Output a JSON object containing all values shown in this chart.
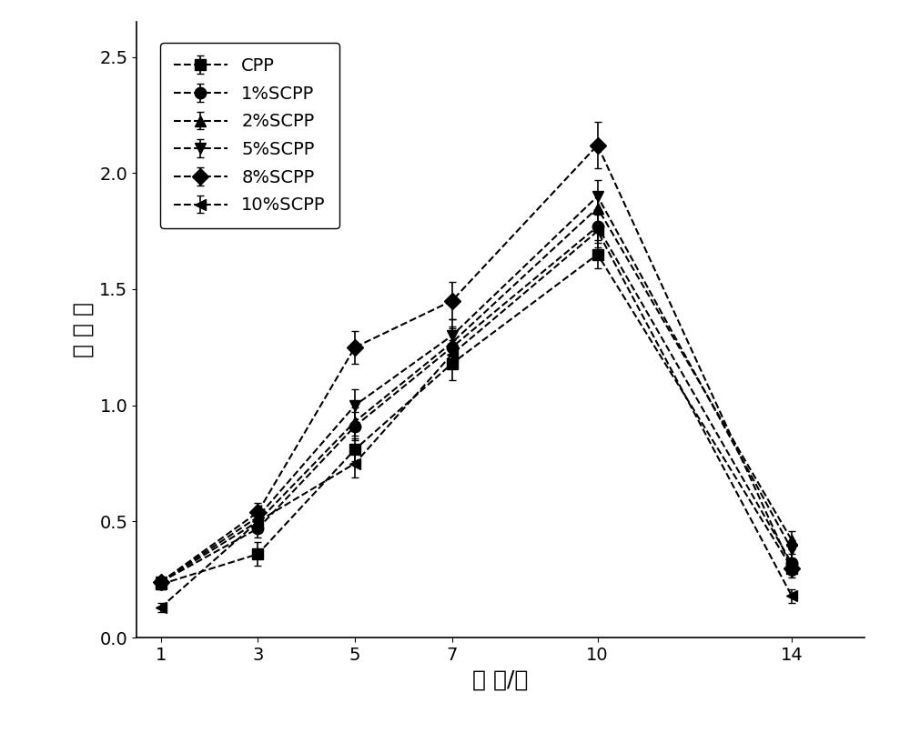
{
  "x": [
    1,
    3,
    5,
    7,
    10,
    14
  ],
  "series": [
    {
      "label": "CPP",
      "marker": "s",
      "y": [
        0.23,
        0.36,
        0.81,
        1.18,
        1.65,
        0.3
      ],
      "yerr": [
        0.02,
        0.05,
        0.05,
        0.07,
        0.06,
        0.03
      ]
    },
    {
      "label": "1%SCPP",
      "marker": "o",
      "y": [
        0.24,
        0.47,
        0.91,
        1.25,
        1.77,
        0.32
      ],
      "yerr": [
        0.02,
        0.04,
        0.06,
        0.08,
        0.07,
        0.04
      ]
    },
    {
      "label": "2%SCPP",
      "marker": "^",
      "y": [
        0.24,
        0.5,
        0.93,
        1.27,
        1.85,
        0.42
      ],
      "yerr": [
        0.02,
        0.04,
        0.06,
        0.07,
        0.07,
        0.04
      ]
    },
    {
      "label": "5%SCPP",
      "marker": "v",
      "y": [
        0.24,
        0.52,
        1.0,
        1.3,
        1.9,
        0.38
      ],
      "yerr": [
        0.02,
        0.03,
        0.07,
        0.07,
        0.07,
        0.04
      ]
    },
    {
      "label": "8%SCPP",
      "marker": "D",
      "y": [
        0.24,
        0.54,
        1.25,
        1.45,
        2.12,
        0.3
      ],
      "yerr": [
        0.02,
        0.04,
        0.07,
        0.08,
        0.1,
        0.04
      ]
    },
    {
      "label": "10%SCPP",
      "marker": "<",
      "y": [
        0.13,
        0.5,
        0.75,
        1.22,
        1.75,
        0.18
      ],
      "yerr": [
        0.02,
        0.03,
        0.06,
        0.06,
        0.07,
        0.03
      ]
    }
  ],
  "xlabel": "时 间/天",
  "ylabel": "吸 光 度",
  "xlim": [
    0.5,
    15.5
  ],
  "ylim": [
    0.0,
    2.65
  ],
  "yticks": [
    0.0,
    0.5,
    1.0,
    1.5,
    2.0,
    2.5
  ],
  "xticks": [
    1,
    3,
    5,
    7,
    10,
    14
  ],
  "line_color": "#000000",
  "background_color": "#ffffff",
  "legend_loc": "upper left",
  "axis_fontsize": 18,
  "legend_fontsize": 14,
  "tick_fontsize": 14,
  "markersize": 9,
  "linewidth": 1.5
}
